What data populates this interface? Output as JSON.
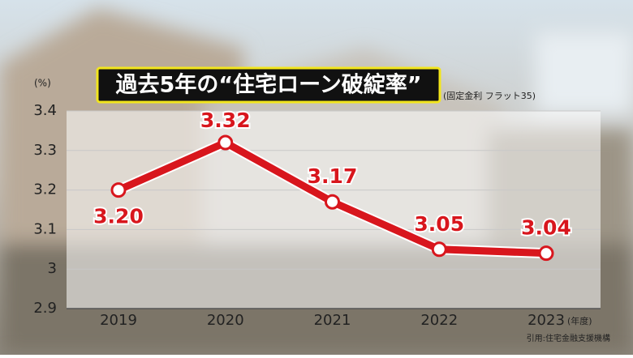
{
  "chart_data": {
    "type": "line",
    "title": "過去5年の“住宅ローン破綻率”",
    "subtitle": "(固定金利 フラット35)",
    "y_label": "(%)",
    "x_label": "(年度)",
    "source": "引用:住宅金融支援機構",
    "categories": [
      "2019",
      "2020",
      "2021",
      "2022",
      "2023"
    ],
    "values": [
      3.2,
      3.32,
      3.17,
      3.05,
      3.04
    ],
    "value_labels": [
      "3.20",
      "3.32",
      "3.17",
      "3.05",
      "3.04"
    ],
    "color": "#d8161d",
    "ylim": [
      2.9,
      3.4
    ],
    "yticks": [
      2.9,
      3,
      3.1,
      3.2,
      3.3,
      3.4
    ],
    "grid": true
  }
}
